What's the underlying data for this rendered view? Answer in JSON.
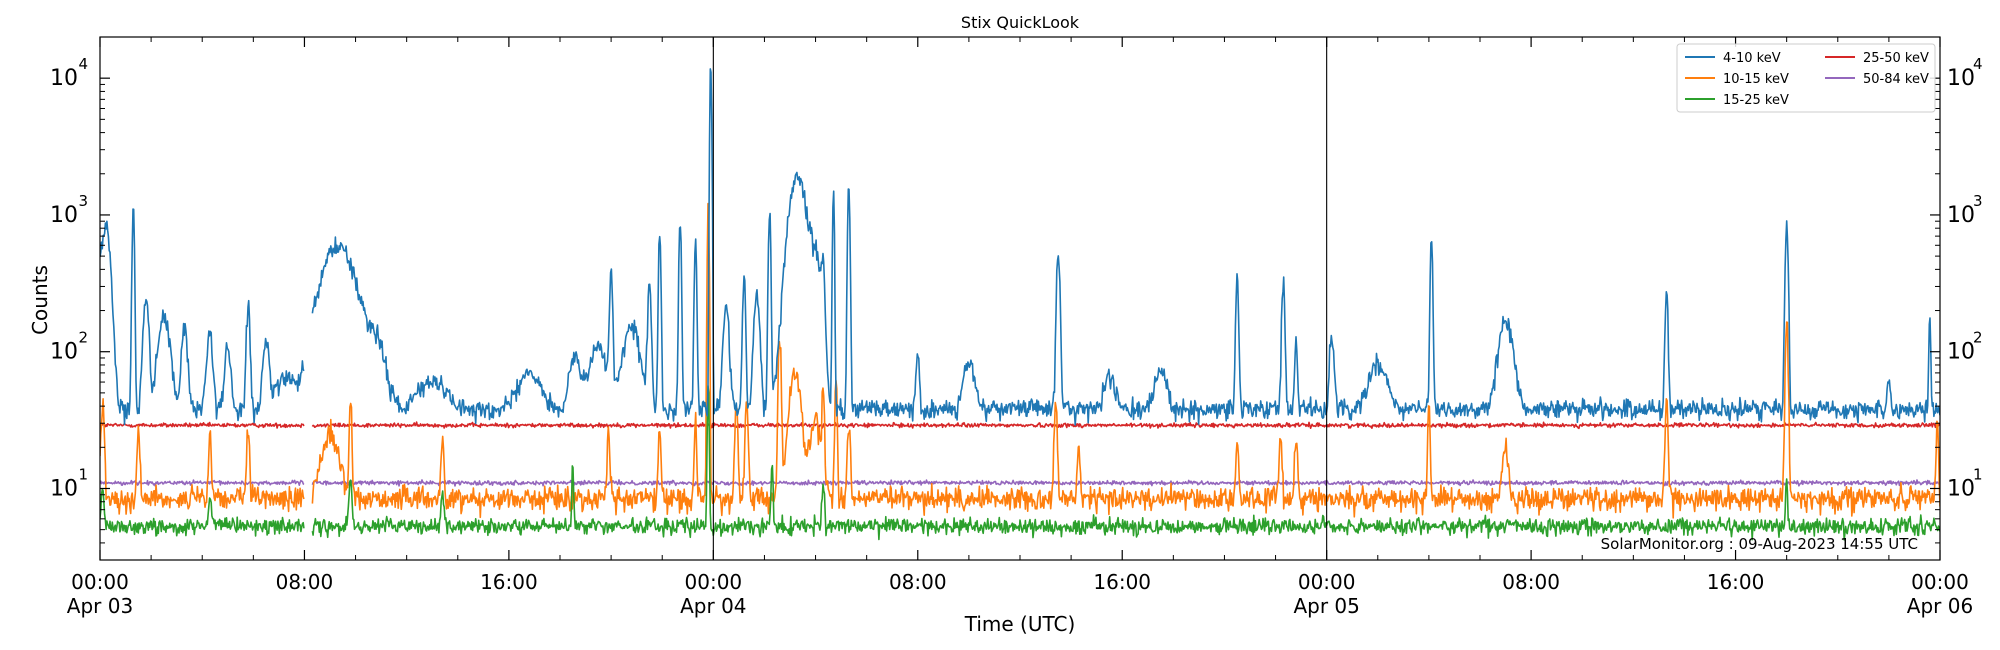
{
  "chart_data": {
    "type": "line",
    "title": "Stix QuickLook",
    "xlabel": "Time (UTC)",
    "ylabel": "Counts",
    "yscale": "log",
    "ylim": [
      3,
      20000
    ],
    "xlim_hours": [
      0,
      72
    ],
    "grid": false,
    "legend_position": "top-right",
    "watermark": "SolarMonitor.org : 09-Aug-2023 14:55 UTC",
    "y_ticks": [
      {
        "value": 10,
        "base": "10",
        "exp": "1"
      },
      {
        "value": 100,
        "base": "10",
        "exp": "2"
      },
      {
        "value": 1000,
        "base": "10",
        "exp": "3"
      },
      {
        "value": 10000,
        "base": "10",
        "exp": "4"
      }
    ],
    "x_ticks": [
      {
        "hour": 0,
        "time": "00:00",
        "date": "Apr 03"
      },
      {
        "hour": 8,
        "time": "08:00",
        "date": ""
      },
      {
        "hour": 16,
        "time": "16:00",
        "date": ""
      },
      {
        "hour": 24,
        "time": "00:00",
        "date": "Apr 04"
      },
      {
        "hour": 32,
        "time": "08:00",
        "date": ""
      },
      {
        "hour": 40,
        "time": "16:00",
        "date": ""
      },
      {
        "hour": 48,
        "time": "00:00",
        "date": "Apr 05"
      },
      {
        "hour": 56,
        "time": "08:00",
        "date": ""
      },
      {
        "hour": 64,
        "time": "16:00",
        "date": ""
      },
      {
        "hour": 72,
        "time": "00:00",
        "date": "Apr 06"
      }
    ],
    "day_boundaries_hours": [
      24,
      48
    ],
    "data_gap_hours": [
      8.0,
      8.3
    ],
    "series": [
      {
        "name": "4-10 keV",
        "color": "#1f77b4",
        "baseline": 38,
        "noise": 0.12,
        "peaks": [
          [
            0.1,
            320,
            0.2
          ],
          [
            0.25,
            600,
            0.15
          ],
          [
            1.3,
            1100,
            0.04
          ],
          [
            1.8,
            250,
            0.1
          ],
          [
            2.5,
            180,
            0.2
          ],
          [
            3.3,
            150,
            0.1
          ],
          [
            4.3,
            130,
            0.1
          ],
          [
            5.0,
            110,
            0.1
          ],
          [
            5.8,
            220,
            0.06
          ],
          [
            6.5,
            120,
            0.1
          ],
          [
            7.2,
            60,
            0.4
          ],
          [
            9.3,
            600,
            0.6
          ],
          [
            10.8,
            120,
            0.3
          ],
          [
            13.0,
            60,
            0.5
          ],
          [
            16.8,
            70,
            0.4
          ],
          [
            18.6,
            90,
            0.2
          ],
          [
            19.5,
            110,
            0.3
          ],
          [
            20.0,
            380,
            0.05
          ],
          [
            20.8,
            150,
            0.3
          ],
          [
            21.5,
            300,
            0.06
          ],
          [
            21.9,
            800,
            0.04
          ],
          [
            22.7,
            900,
            0.04
          ],
          [
            23.3,
            650,
            0.04
          ],
          [
            23.9,
            13000,
            0.03
          ],
          [
            24.5,
            220,
            0.1
          ],
          [
            25.2,
            350,
            0.05
          ],
          [
            25.7,
            250,
            0.1
          ],
          [
            26.2,
            1200,
            0.04
          ],
          [
            27.3,
            1900,
            0.3
          ],
          [
            28.0,
            450,
            0.2
          ],
          [
            28.3,
            400,
            0.05
          ],
          [
            28.7,
            1700,
            0.03
          ],
          [
            29.3,
            1600,
            0.04
          ],
          [
            32.0,
            100,
            0.06
          ],
          [
            34.0,
            80,
            0.2
          ],
          [
            37.5,
            520,
            0.06
          ],
          [
            39.5,
            65,
            0.2
          ],
          [
            41.5,
            75,
            0.2
          ],
          [
            44.5,
            320,
            0.05
          ],
          [
            46.3,
            320,
            0.05
          ],
          [
            46.8,
            140,
            0.04
          ],
          [
            48.2,
            130,
            0.08
          ],
          [
            50.0,
            80,
            0.3
          ],
          [
            52.1,
            700,
            0.04
          ],
          [
            55.0,
            170,
            0.25
          ],
          [
            61.3,
            280,
            0.05
          ],
          [
            66.0,
            870,
            0.05
          ],
          [
            70.0,
            60,
            0.05
          ],
          [
            71.6,
            180,
            0.03
          ]
        ]
      },
      {
        "name": "10-15 keV",
        "color": "#ff7f0e",
        "baseline": 8.5,
        "noise": 0.14,
        "peaks": [
          [
            0.1,
            40,
            0.06
          ],
          [
            1.5,
            25,
            0.05
          ],
          [
            4.3,
            25,
            0.04
          ],
          [
            5.8,
            26,
            0.05
          ],
          [
            9.0,
            25,
            0.3
          ],
          [
            9.8,
            50,
            0.04
          ],
          [
            13.4,
            22,
            0.05
          ],
          [
            19.9,
            25,
            0.05
          ],
          [
            21.9,
            25,
            0.05
          ],
          [
            23.3,
            30,
            0.04
          ],
          [
            23.8,
            1300,
            0.03
          ],
          [
            24.9,
            40,
            0.05
          ],
          [
            25.3,
            45,
            0.05
          ],
          [
            26.6,
            120,
            0.05
          ],
          [
            27.2,
            70,
            0.2
          ],
          [
            28.0,
            30,
            0.2
          ],
          [
            28.3,
            50,
            0.04
          ],
          [
            28.8,
            60,
            0.04
          ],
          [
            29.3,
            30,
            0.05
          ],
          [
            37.4,
            45,
            0.05
          ],
          [
            38.3,
            18,
            0.05
          ],
          [
            44.5,
            20,
            0.05
          ],
          [
            46.2,
            25,
            0.05
          ],
          [
            46.8,
            25,
            0.05
          ],
          [
            52.0,
            40,
            0.04
          ],
          [
            55.0,
            20,
            0.1
          ],
          [
            61.3,
            40,
            0.05
          ],
          [
            66.0,
            150,
            0.05
          ],
          [
            71.9,
            28,
            0.04
          ]
        ]
      },
      {
        "name": "15-25 keV",
        "color": "#2ca02c",
        "baseline": 5.3,
        "noise": 0.1,
        "peaks": [
          [
            0.1,
            10,
            0.05
          ],
          [
            4.3,
            9,
            0.05
          ],
          [
            9.8,
            11,
            0.05
          ],
          [
            13.4,
            9,
            0.05
          ],
          [
            18.5,
            15,
            0.03
          ],
          [
            23.8,
            60,
            0.03
          ],
          [
            26.3,
            15,
            0.04
          ],
          [
            28.3,
            10,
            0.05
          ],
          [
            66.0,
            13,
            0.03
          ]
        ]
      },
      {
        "name": "25-50 keV",
        "color": "#d62728",
        "baseline": 29,
        "noise": 0.025,
        "peaks": []
      },
      {
        "name": "50-84 keV",
        "color": "#9467bd",
        "baseline": 11,
        "noise": 0.025,
        "peaks": []
      }
    ]
  }
}
